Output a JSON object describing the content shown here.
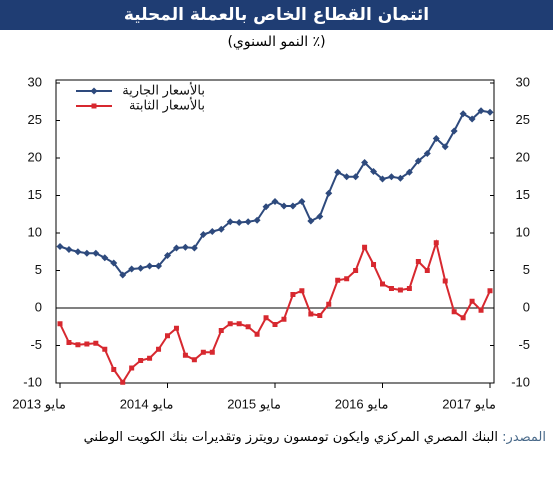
{
  "chart_data": {
    "type": "line",
    "title": "ائتمان القطاع الخاص بالعملة المحلية",
    "subtitle": "(٪ النمو السنوي)",
    "categories": [
      "مايو 2013",
      null,
      null,
      null,
      null,
      null,
      null,
      null,
      null,
      null,
      null,
      null,
      "مايو 2014",
      null,
      null,
      null,
      null,
      null,
      null,
      null,
      null,
      null,
      null,
      null,
      "مايو 2015",
      null,
      null,
      null,
      null,
      null,
      null,
      null,
      null,
      null,
      null,
      null,
      "مايو 2016",
      null,
      null,
      null,
      null,
      null,
      null,
      null,
      null,
      null,
      null,
      null,
      "مايو 2017"
    ],
    "series": [
      {
        "name": "بالأسعار الجارية",
        "color": "#2e4a7d",
        "values": [
          8.2,
          7.8,
          7.5,
          7.3,
          7.3,
          6.7,
          6.0,
          4.4,
          5.2,
          5.3,
          5.6,
          5.6,
          7.0,
          8.0,
          8.1,
          8.0,
          9.8,
          10.2,
          10.5,
          11.5,
          11.4,
          11.5,
          11.7,
          13.5,
          14.2,
          13.6,
          13.6,
          14.2,
          11.6,
          12.2,
          15.3,
          18.1,
          17.5,
          17.5,
          19.4,
          18.2,
          17.2,
          17.5,
          17.3,
          18.1,
          19.6,
          20.6,
          22.6,
          21.5,
          23.6,
          25.9,
          25.2,
          26.3,
          26.1
        ]
      },
      {
        "name": "بالأسعار الثابتة",
        "color": "#d7282f",
        "values": [
          -2.1,
          -4.6,
          -4.9,
          -4.8,
          -4.7,
          -5.5,
          -8.2,
          -9.9,
          -8.0,
          -7.0,
          -6.7,
          -5.5,
          -3.7,
          -2.7,
          -6.3,
          -6.9,
          -5.9,
          -5.9,
          -3.0,
          -2.1,
          -2.1,
          -2.5,
          -3.5,
          -1.3,
          -2.2,
          -1.5,
          1.8,
          2.3,
          -0.8,
          -1.0,
          0.5,
          3.7,
          3.9,
          5.0,
          8.1,
          5.8,
          3.2,
          2.6,
          2.4,
          2.6,
          6.2,
          5.0,
          8.7,
          3.6,
          -0.5,
          -1.3,
          0.9,
          -0.3,
          2.3
        ]
      }
    ],
    "ylim": [
      -10,
      30
    ],
    "yticks": [
      -10,
      -5,
      0,
      5,
      10,
      15,
      20,
      25,
      30
    ],
    "y2lim": [
      -10,
      30
    ],
    "y2ticks": [
      -10,
      -5,
      0,
      5,
      10,
      15,
      20,
      25,
      30
    ],
    "grid": false,
    "legend": "top-left",
    "source_label": "المصدر:",
    "source_text": "البنك المصري المركزي وايكون تومسون رويترز وتقديرات بنك الكويت الوطني"
  }
}
